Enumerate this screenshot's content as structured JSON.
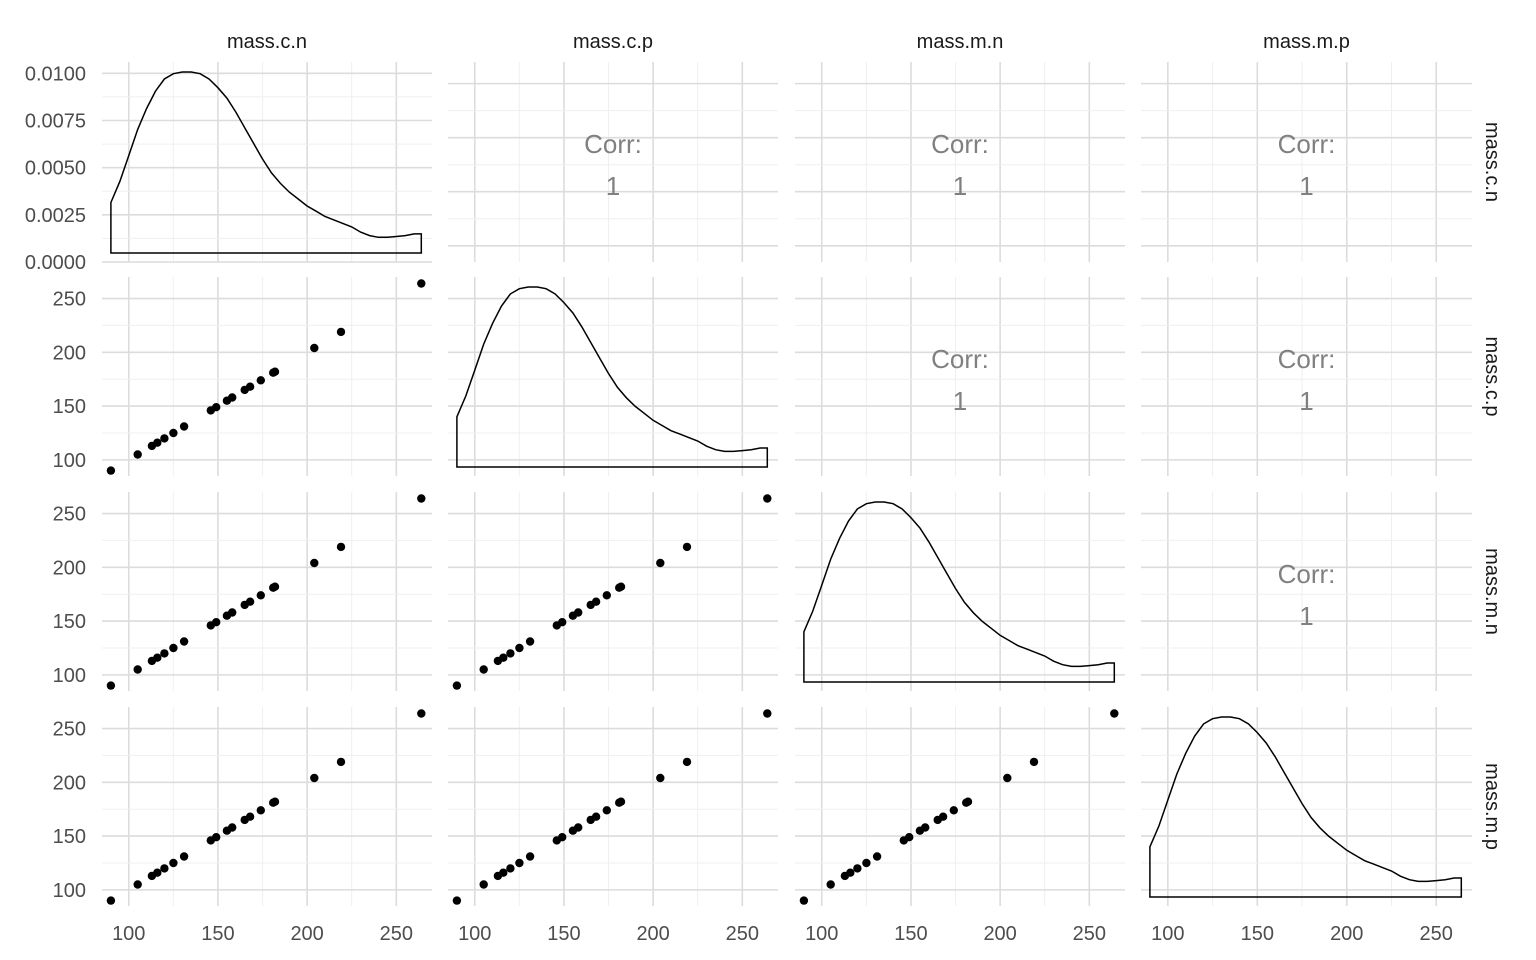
{
  "chart_data": {
    "type": "scatter",
    "variables": [
      "mass.c.n",
      "mass.c.p",
      "mass.m.n",
      "mass.m.p"
    ],
    "points": [
      90,
      105,
      113,
      116,
      120,
      125,
      131,
      146,
      149,
      155,
      158,
      165,
      168,
      174,
      181,
      182,
      204,
      219,
      264
    ],
    "correlation_label": "Corr:",
    "correlation_value": "1",
    "axis_range": [
      85,
      270
    ],
    "x_ticks": [
      100,
      150,
      200,
      250
    ],
    "y_ticks": [
      100,
      150,
      200,
      250
    ],
    "density_ticks": [
      "0.0000",
      "0.0025",
      "0.0050",
      "0.0075",
      "0.0100"
    ],
    "density_tick_values": [
      0,
      0.0025,
      0.005,
      0.0075,
      0.01
    ],
    "density_ylim": [
      0,
      0.0106
    ],
    "density": {
      "x": [
        90,
        95,
        100,
        105,
        110,
        115,
        120,
        125,
        130,
        135,
        140,
        145,
        150,
        155,
        160,
        165,
        170,
        175,
        180,
        185,
        190,
        195,
        200,
        205,
        210,
        215,
        220,
        225,
        230,
        235,
        240,
        245,
        250,
        255,
        260,
        264
      ],
      "y": [
        0.0029,
        0.0041,
        0.0056,
        0.0071,
        0.0083,
        0.0093,
        0.01,
        0.0103,
        0.0104,
        0.0104,
        0.0103,
        0.01,
        0.0095,
        0.0089,
        0.0081,
        0.0072,
        0.0063,
        0.0054,
        0.0046,
        0.004,
        0.0035,
        0.0031,
        0.0027,
        0.0024,
        0.0021,
        0.0019,
        0.0017,
        0.0015,
        0.0012,
        0.001,
        0.0009,
        0.0009,
        0.00095,
        0.001,
        0.0011,
        0.0011
      ]
    },
    "grid": true
  }
}
